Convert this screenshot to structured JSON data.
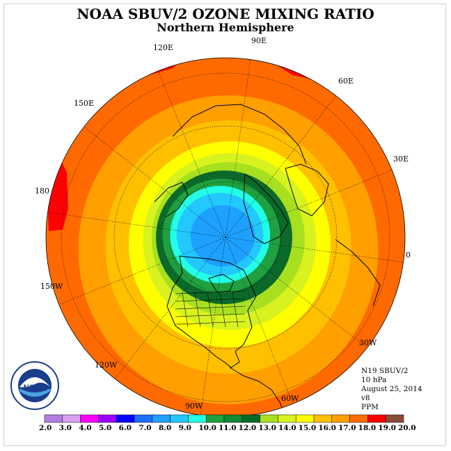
{
  "title": "NOAA SBUV/2 OZONE MIXING RATIO",
  "subtitle": "Northern Hemisphere",
  "logo": {
    "text": "NOAA",
    "ring_text": "NATIONAL OCEANIC AND ATMOSPHERIC ADMINISTRATION · U.S. DEPARTMENT OF COMMERCE"
  },
  "meta": {
    "instrument": "N19 SBUV/2",
    "level": "10 hPa",
    "date": "August 25, 2014",
    "version": "v8",
    "units": "PPM"
  },
  "longitude_labels": [
    "90E",
    "60E",
    "30E",
    "0",
    "30W",
    "60W",
    "90W",
    "120W",
    "150W",
    "180",
    "150E",
    "120E"
  ],
  "colorbar": {
    "ticks": [
      "2.0",
      "3.0",
      "4.0",
      "5.0",
      "6.0",
      "7.0",
      "8.0",
      "9.0",
      "10.0",
      "11.0",
      "12.0",
      "13.0",
      "14.0",
      "15.0",
      "16.0",
      "17.0",
      "18.0",
      "19.0",
      "20.0"
    ],
    "colors": [
      "#b27fde",
      "#d9a0f0",
      "#ff00ff",
      "#9b00ff",
      "#0000ff",
      "#1f6fff",
      "#1ea0ff",
      "#22c8ff",
      "#22ffe6",
      "#20a040",
      "#138a38",
      "#0b6a2a",
      "#a8e020",
      "#d8f220",
      "#ffff00",
      "#ffc000",
      "#ff9f00",
      "#ff6a00",
      "#ff0000",
      "#8b4a3a"
    ]
  },
  "chart_data": {
    "type": "heatmap",
    "projection": "north polar stereographic",
    "levels": [
      2.0,
      3.0,
      4.0,
      5.0,
      6.0,
      7.0,
      8.0,
      9.0,
      10.0,
      11.0,
      12.0,
      13.0,
      14.0,
      15.0,
      16.0,
      17.0,
      18.0,
      19.0,
      20.0
    ],
    "bands": [
      {
        "range": [
          18.0,
          19.0
        ],
        "color": "#ff6a00",
        "location": "outer rim"
      },
      {
        "range": [
          19.0,
          20.0
        ],
        "color": "#ff0000",
        "location": "patches near 180 and 120E-60E"
      },
      {
        "range": [
          17.0,
          18.0
        ],
        "color": "#ff9f00",
        "location": "outer ring"
      },
      {
        "range": [
          16.0,
          17.0
        ],
        "color": "#ffc000",
        "location": "ring"
      },
      {
        "range": [
          15.0,
          16.0
        ],
        "color": "#ffff00",
        "location": "ring"
      },
      {
        "range": [
          14.0,
          15.0
        ],
        "color": "#d8f220",
        "location": "ring"
      },
      {
        "range": [
          13.0,
          14.0
        ],
        "color": "#a8e020",
        "location": "ring"
      },
      {
        "range": [
          12.0,
          13.0
        ],
        "color": "#0b6a2a",
        "location": "ring around pole"
      },
      {
        "range": [
          11.0,
          12.0
        ],
        "color": "#20a040",
        "location": "ring around pole"
      },
      {
        "range": [
          10.0,
          11.0
        ],
        "color": "#22ffe6",
        "location": "polar cap edge"
      },
      {
        "range": [
          9.0,
          10.0
        ],
        "color": "#22c8ff",
        "location": "polar cap"
      },
      {
        "range": [
          8.0,
          9.0
        ],
        "color": "#1ea0ff",
        "location": "pole center"
      }
    ]
  }
}
